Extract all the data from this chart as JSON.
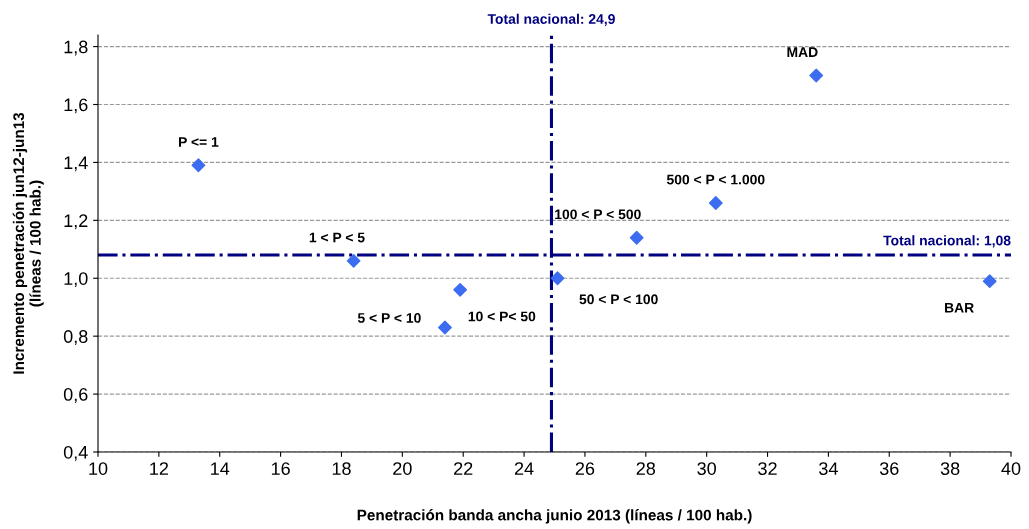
{
  "chart_data": {
    "type": "scatter",
    "xlabel": "Penetración banda ancha junio 2013 (líneas / 100 hab.)",
    "ylabel": "Incremento penetración jun12-jun13\n(líneas / 100 hab.)",
    "series": [
      {
        "color": "#3c6cf0",
        "x": [
          13.3,
          18.4,
          21.4,
          21.9,
          25.1,
          27.7,
          30.3,
          33.6,
          39.3
        ],
        "values": [
          1.39,
          1.06,
          0.83,
          0.96,
          1.0,
          1.14,
          1.26,
          1.7,
          0.99
        ]
      }
    ],
    "marker": "diamond",
    "annotations": [
      {
        "text": "P <= 1",
        "x": 13.3,
        "y": 1.39
      },
      {
        "text": "1 < P < 5",
        "x": 18.4,
        "y": 1.06
      },
      {
        "text": "5 < P < 10",
        "x": 21.4,
        "y": 0.83
      },
      {
        "text": "10 < P< 50",
        "x": 21.9,
        "y": 0.96
      },
      {
        "text": "50 < P < 100",
        "x": 25.1,
        "y": 1.0
      },
      {
        "text": "100 < P < 500",
        "x": 27.7,
        "y": 1.14
      },
      {
        "text": "500 < P < 1.000",
        "x": 30.3,
        "y": 1.26
      },
      {
        "text": "MAD",
        "x": 33.6,
        "y": 1.7
      },
      {
        "text": "BAR",
        "x": 39.3,
        "y": 0.99
      }
    ],
    "ref_lines": [
      {
        "axis": "x",
        "value": 24.9,
        "label": "Total nacional: 24,9",
        "color": "#000080",
        "line_style": "dashdot"
      },
      {
        "axis": "y",
        "value": 1.08,
        "label": "Total nacional: 1,08",
        "color": "#000080",
        "line_style": "dashdot"
      }
    ],
    "xlim": [
      10,
      40
    ],
    "xticks": [
      10,
      12,
      14,
      16,
      18,
      20,
      22,
      24,
      26,
      28,
      30,
      32,
      34,
      36,
      38,
      40
    ],
    "ylim": [
      0.4,
      1.84
    ],
    "yticks": [
      {
        "value": 0.4,
        "label": "0,4"
      },
      {
        "value": 0.6,
        "label": "0,6"
      },
      {
        "value": 0.8,
        "label": "0,8"
      },
      {
        "value": 1.0,
        "label": "1,0"
      },
      {
        "value": 1.2,
        "label": "1,2"
      },
      {
        "value": 1.4,
        "label": "1,4"
      },
      {
        "value": 1.6,
        "label": "1,6"
      },
      {
        "value": 1.8,
        "label": "1,8"
      }
    ],
    "grid": "y"
  }
}
